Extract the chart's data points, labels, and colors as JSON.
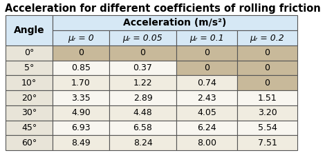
{
  "title": "Acceleration for different coefficients of rolling friction",
  "col_header_main": "Acceleration (m/s²)",
  "col_header_sub": [
    "μᵣ = 0",
    "μᵣ = 0.05",
    "μᵣ = 0.1",
    "μᵣ = 0.2"
  ],
  "row_header_label": "Angle",
  "angles": [
    "0°",
    "5°",
    "10°",
    "20°",
    "30°",
    "45°",
    "60°"
  ],
  "data": [
    [
      0,
      0,
      0,
      0
    ],
    [
      0.85,
      0.37,
      0,
      0
    ],
    [
      1.7,
      1.22,
      0.74,
      0
    ],
    [
      3.35,
      2.89,
      2.43,
      1.51
    ],
    [
      4.9,
      4.48,
      4.05,
      3.2
    ],
    [
      6.93,
      6.58,
      6.24,
      5.54
    ],
    [
      8.49,
      8.24,
      8.0,
      7.51
    ]
  ],
  "data_display": [
    [
      "0",
      "0",
      "0",
      "0"
    ],
    [
      "0.85",
      "0.37",
      "0",
      "0"
    ],
    [
      "1.70",
      "1.22",
      "0.74",
      "0"
    ],
    [
      "3.35",
      "2.89",
      "2.43",
      "1.51"
    ],
    [
      "4.90",
      "4.48",
      "4.05",
      "3.20"
    ],
    [
      "6.93",
      "6.58",
      "6.24",
      "5.54"
    ],
    [
      "8.49",
      "8.24",
      "8.00",
      "7.51"
    ]
  ],
  "color_header_blue": "#d6e8f5",
  "color_zero": "#c8b99a",
  "color_angle_col": "#e8e4d8",
  "color_data_light": "#f0ece0",
  "color_data_white": "#f8f6f0",
  "color_border": "#666666",
  "title_color": "#000000",
  "title_fontsize": 10.5,
  "header_fontsize": 9,
  "cell_fontsize": 9
}
